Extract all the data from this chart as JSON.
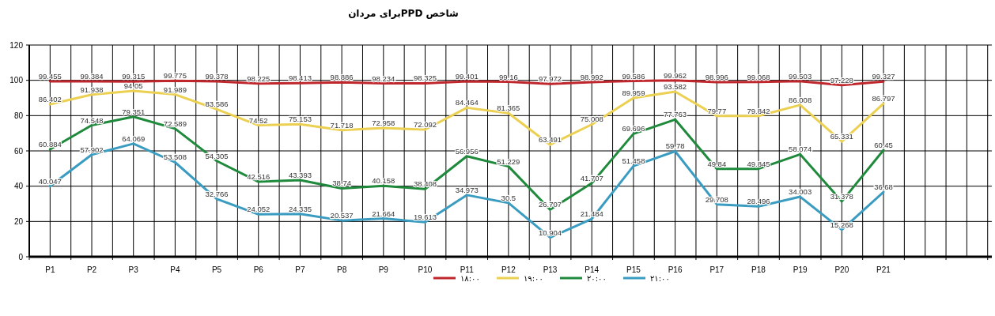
{
  "chart_data": {
    "type": "line",
    "title": "شاخص PPDبرای مردان",
    "categories": [
      "P1",
      "P2",
      "P3",
      "P4",
      "P5",
      "P6",
      "P7",
      "P8",
      "P9",
      "P10",
      "P11",
      "P12",
      "P13",
      "P14",
      "P15",
      "P16",
      "P17",
      "P18",
      "P19",
      "P20",
      "P21"
    ],
    "series": [
      {
        "name": "۱۸:۰۰",
        "color": "#c0272d",
        "values": [
          99.455,
          99.384,
          99.315,
          99.775,
          99.378,
          98.225,
          98.413,
          98.886,
          98.234,
          98.325,
          99.401,
          99.16,
          97.972,
          98.992,
          99.586,
          99.962,
          98.996,
          99.068,
          99.503,
          97.228,
          99.327
        ]
      },
      {
        "name": "۱۹:۰۰",
        "color": "#ecd052",
        "values": [
          86.402,
          91.938,
          94.05,
          91.989,
          83.586,
          74.52,
          75.153,
          71.718,
          72.958,
          72.092,
          84.464,
          81.365,
          63.491,
          75.008,
          89.959,
          93.582,
          79.77,
          79.842,
          86.008,
          65.331,
          86.797
        ]
      },
      {
        "name": "۲۰:۰۰",
        "color": "#1f8a3c",
        "values": [
          60.884,
          74.548,
          79.351,
          72.589,
          54.305,
          42.516,
          43.393,
          38.74,
          40.158,
          38.408,
          56.956,
          51.229,
          26.707,
          41.707,
          69.696,
          77.763,
          49.84,
          49.845,
          58.074,
          31.378,
          60.45
        ]
      },
      {
        "name": "۲۱:۰۰",
        "color": "#3a9cc0",
        "values": [
          40.047,
          57.902,
          64.069,
          53.508,
          32.766,
          24.052,
          24.335,
          20.537,
          21.664,
          19.613,
          34.973,
          30.5,
          10.904,
          21.484,
          51.458,
          59.78,
          29.708,
          28.496,
          34.003,
          15.268,
          36.68
        ]
      }
    ],
    "ylim": [
      0,
      120
    ],
    "yticks": [
      0,
      20,
      40,
      60,
      80,
      100,
      120
    ],
    "grid": true,
    "legend": "bottom",
    "data_labels": true,
    "marker": "none",
    "line_style": "solid"
  }
}
